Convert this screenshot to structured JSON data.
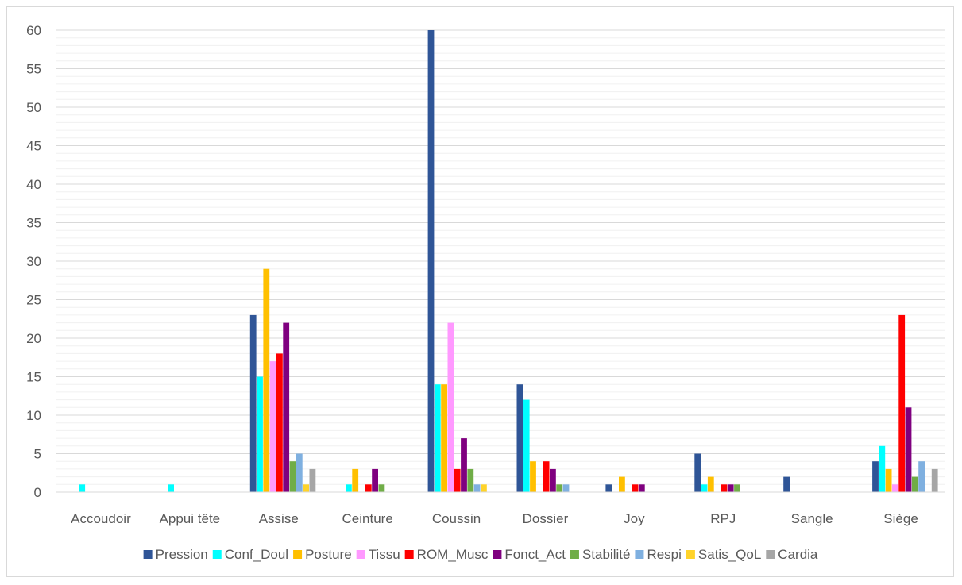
{
  "chart_data": {
    "type": "bar",
    "title": "",
    "xlabel": "",
    "ylabel": "",
    "ylim": [
      0,
      60
    ],
    "yticks": [
      0,
      5,
      10,
      15,
      20,
      25,
      30,
      35,
      40,
      45,
      50,
      55,
      60
    ],
    "grid": true,
    "legend_position": "bottom",
    "categories": [
      "Accoudoir",
      "Appui tête",
      "Assise",
      "Ceinture",
      "Coussin",
      "Dossier",
      "Joy",
      "RPJ",
      "Sangle",
      "Siège"
    ],
    "series": [
      {
        "name": "Pression",
        "color": "#2f5597",
        "values": [
          0,
          0,
          23,
          0,
          60,
          14,
          1,
          5,
          2,
          4
        ]
      },
      {
        "name": "Conf_Doul",
        "color": "#00ffff",
        "values": [
          1,
          1,
          15,
          1,
          14,
          12,
          0,
          1,
          0,
          6
        ]
      },
      {
        "name": "Posture",
        "color": "#ffc000",
        "values": [
          0,
          0,
          29,
          3,
          14,
          4,
          2,
          2,
          0,
          3
        ]
      },
      {
        "name": "Tissu",
        "color": "#ff99ff",
        "values": [
          0,
          0,
          17,
          0,
          22,
          0,
          0,
          0,
          0,
          1
        ]
      },
      {
        "name": "ROM_Musc",
        "color": "#ff0000",
        "values": [
          0,
          0,
          18,
          1,
          3,
          4,
          1,
          1,
          0,
          23
        ]
      },
      {
        "name": "Fonct_Act",
        "color": "#7f007f",
        "values": [
          0,
          0,
          22,
          3,
          7,
          3,
          1,
          1,
          0,
          11
        ]
      },
      {
        "name": "Stabilité",
        "color": "#70ad47",
        "values": [
          0,
          0,
          4,
          1,
          3,
          1,
          0,
          1,
          0,
          2
        ]
      },
      {
        "name": "Respi",
        "color": "#7fb0e0",
        "values": [
          0,
          0,
          5,
          0,
          1,
          1,
          0,
          0,
          0,
          4
        ]
      },
      {
        "name": "Satis_QoL",
        "color": "#ffd32a",
        "values": [
          0,
          0,
          1,
          0,
          1,
          0,
          0,
          0,
          0,
          0
        ]
      },
      {
        "name": "Cardia",
        "color": "#a6a6a6",
        "values": [
          0,
          0,
          3,
          0,
          0,
          0,
          0,
          0,
          0,
          3
        ]
      }
    ]
  }
}
